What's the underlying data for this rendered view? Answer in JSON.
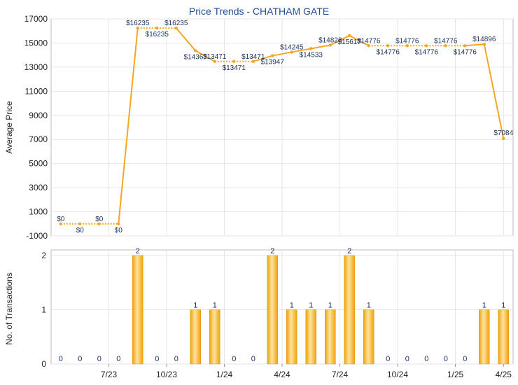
{
  "chart_data": [
    {
      "type": "line",
      "title": "Price Trends - CHATHAM GATE",
      "ylabel": "Average Price",
      "ylim": [
        -1000,
        17000
      ],
      "yticks": [
        -1000,
        1000,
        3000,
        5000,
        7000,
        9000,
        11000,
        13000,
        15000,
        17000
      ],
      "ytick_labels": [
        "-1000",
        "1000",
        "3000",
        "5000",
        "7000",
        "9000",
        "11000",
        "13000",
        "15000",
        "17000"
      ],
      "x_tick_labels": [
        "7/23",
        "10/23",
        "1/24",
        "4/24",
        "7/24",
        "10/24",
        "1/25",
        "4/25"
      ],
      "grid": true,
      "series": [
        {
          "values": [
            0,
            0,
            0,
            0,
            16235,
            16235,
            16235,
            14367,
            13471,
            13471,
            13471,
            13947,
            14245,
            14533,
            14823,
            15617,
            14776,
            14776,
            14776,
            14776,
            14776,
            14776,
            14896,
            7084
          ],
          "labels": [
            "$0",
            "$0",
            "$0",
            "$0",
            "$16235",
            "$16235",
            "$16235",
            "$14367",
            "$13471",
            "$13471",
            "$13471",
            "$13947",
            "$14245",
            "$14533",
            "$14823",
            "$15617",
            "$14776",
            "$14776",
            "$14776",
            "$14776",
            "$14776",
            "$14776",
            "$14896",
            "$7084"
          ],
          "color": "#f5a623"
        }
      ]
    },
    {
      "type": "bar",
      "ylabel": "No. of Transactions",
      "ylim": [
        0,
        2
      ],
      "yticks": [
        0,
        1,
        2
      ],
      "ytick_labels": [
        "0",
        "1",
        "2"
      ],
      "x_tick_labels": [
        "7/23",
        "10/23",
        "1/24",
        "4/24",
        "7/24",
        "10/24",
        "1/25",
        "4/25"
      ],
      "grid": true,
      "values": [
        0,
        0,
        0,
        0,
        2,
        0,
        0,
        1,
        1,
        0,
        0,
        2,
        1,
        1,
        1,
        2,
        1,
        0,
        0,
        0,
        0,
        0,
        1,
        1
      ],
      "labels": [
        "0",
        "0",
        "0",
        "0",
        "2",
        "0",
        "0",
        "1",
        "1",
        "0",
        "0",
        "2",
        "1",
        "1",
        "1",
        "2",
        "1",
        "0",
        "0",
        "0",
        "0",
        "0",
        "1",
        "1"
      ],
      "color": "#f0a30a"
    }
  ]
}
